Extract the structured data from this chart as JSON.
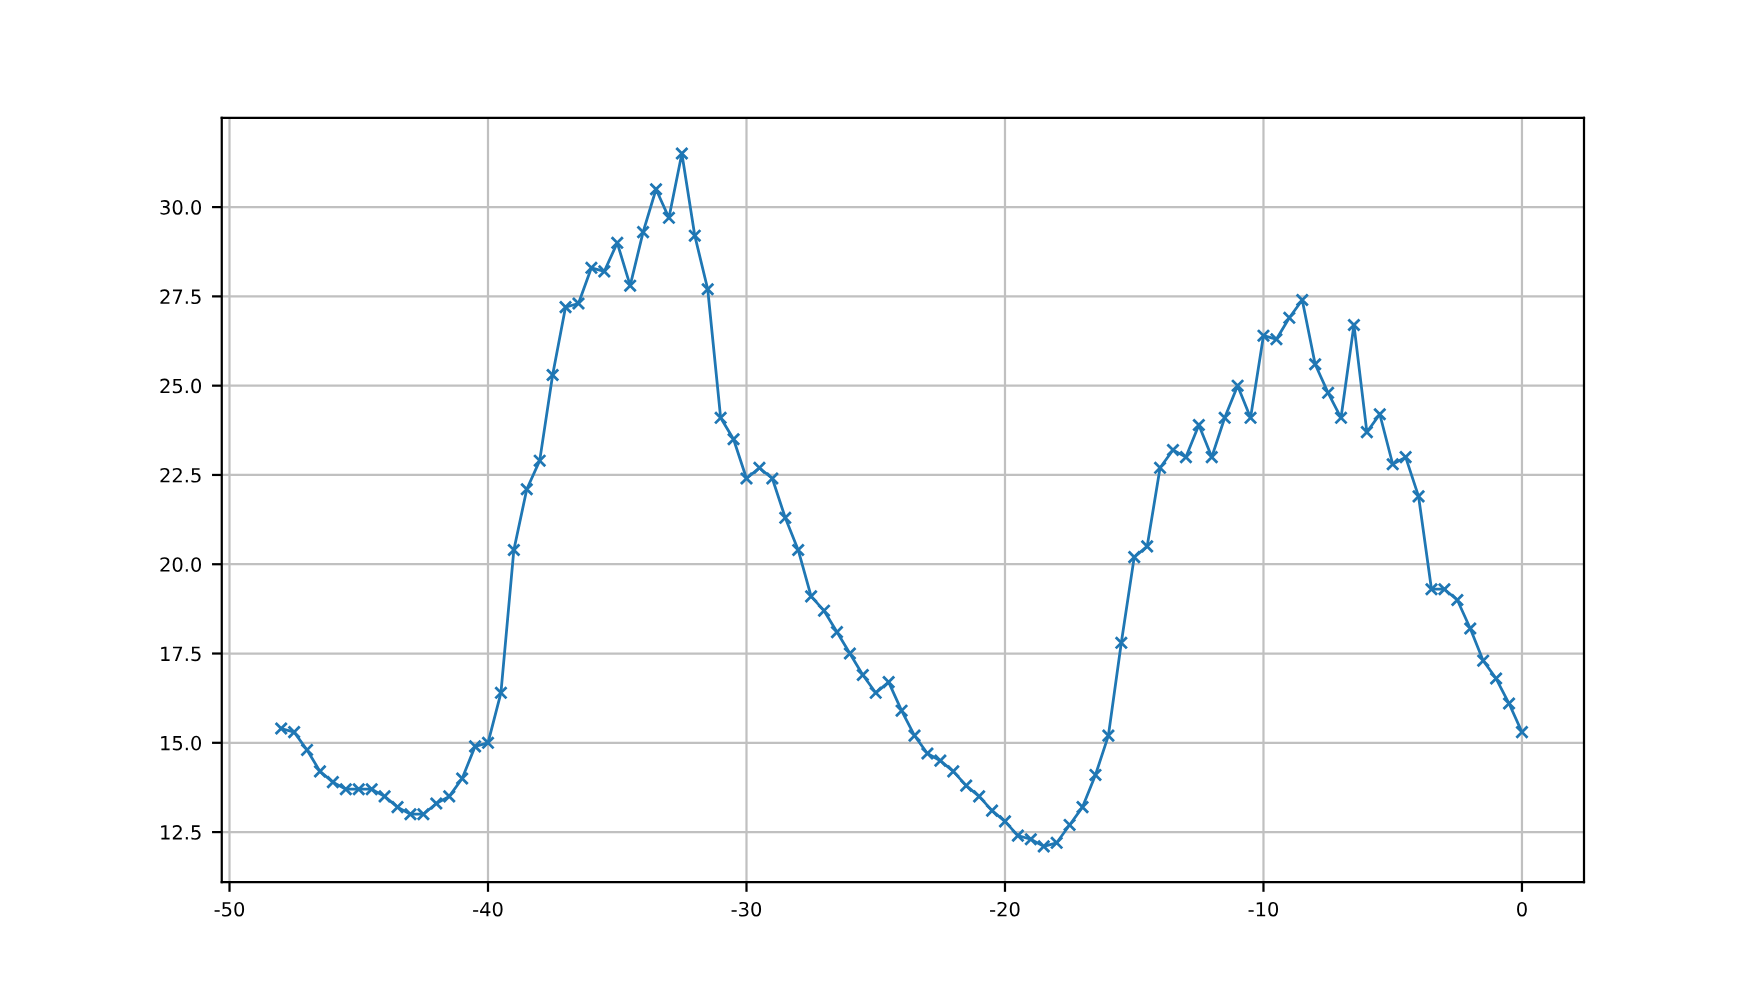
{
  "chart_data": {
    "type": "line",
    "x": [
      -48,
      -47.5,
      -47,
      -46.5,
      -46,
      -45.5,
      -45,
      -44.5,
      -44,
      -43.5,
      -43,
      -42.5,
      -42,
      -41.5,
      -41,
      -40.5,
      -40,
      -39.5,
      -39,
      -38.5,
      -38,
      -37.5,
      -37,
      -36.5,
      -36,
      -35.5,
      -35,
      -34.5,
      -34,
      -33.5,
      -33,
      -32.5,
      -32,
      -31.5,
      -31,
      -30.5,
      -30,
      -29.5,
      -29,
      -28.5,
      -28,
      -27.5,
      -27,
      -26.5,
      -26,
      -25.5,
      -25,
      -24.5,
      -24,
      -23.5,
      -23,
      -22.5,
      -22,
      -21.5,
      -21,
      -20.5,
      -20,
      -19.5,
      -19,
      -18.5,
      -18,
      -17.5,
      -17,
      -16.5,
      -16,
      -15.5,
      -15,
      -14.5,
      -14,
      -13.5,
      -13,
      -12.5,
      -12,
      -11.5,
      -11,
      -10.5,
      -10,
      -9.5,
      -9,
      -8.5,
      -8,
      -7.5,
      -7,
      -6.5,
      -6,
      -5.5,
      -5,
      -4.5,
      -4,
      -3.5,
      -3,
      -2.5,
      -2,
      -1.5,
      -1,
      -0.5,
      0
    ],
    "series": [
      {
        "color": "#1f77b4",
        "values": [
          15.4,
          15.3,
          14.8,
          14.2,
          13.9,
          13.7,
          13.7,
          13.7,
          13.5,
          13.2,
          13.0,
          13.0,
          13.3,
          13.5,
          14.0,
          14.9,
          15.0,
          16.4,
          20.4,
          22.1,
          22.9,
          25.3,
          27.2,
          27.3,
          28.3,
          28.2,
          29.0,
          27.8,
          29.3,
          30.5,
          29.7,
          31.5,
          29.2,
          27.7,
          24.1,
          23.5,
          22.4,
          22.7,
          22.4,
          21.3,
          20.4,
          19.1,
          18.7,
          18.1,
          17.5,
          16.9,
          16.4,
          16.7,
          15.9,
          15.2,
          14.7,
          14.5,
          14.2,
          13.8,
          13.5,
          13.1,
          12.8,
          12.4,
          12.3,
          12.1,
          12.2,
          12.7,
          13.2,
          14.1,
          15.2,
          17.8,
          20.2,
          20.5,
          22.7,
          23.2,
          23.0,
          23.9,
          23.0,
          24.1,
          25.0,
          24.1,
          26.4,
          26.3,
          26.9,
          27.4,
          25.6,
          24.8,
          24.1,
          26.7,
          23.7,
          24.2,
          22.8,
          23.0,
          21.9,
          19.3,
          19.3,
          19.0,
          18.2,
          17.3,
          16.8,
          16.1,
          15.3
        ]
      }
    ],
    "xlim": [
      -50.3,
      2.4
    ],
    "xticks": [
      -50,
      -40,
      -30,
      -20,
      -10,
      0
    ],
    "ylim": [
      11.1,
      32.5
    ],
    "yticks": [
      12.5,
      {
        "value": 15,
        "label": "15.0"
      },
      17.5,
      {
        "value": 20,
        "label": "20.0"
      },
      22.5,
      {
        "value": 25,
        "label": "25.0"
      },
      27.5,
      {
        "value": 30,
        "label": "30.0"
      }
    ],
    "grid": true,
    "marker": "cross",
    "line_style": "solid"
  }
}
